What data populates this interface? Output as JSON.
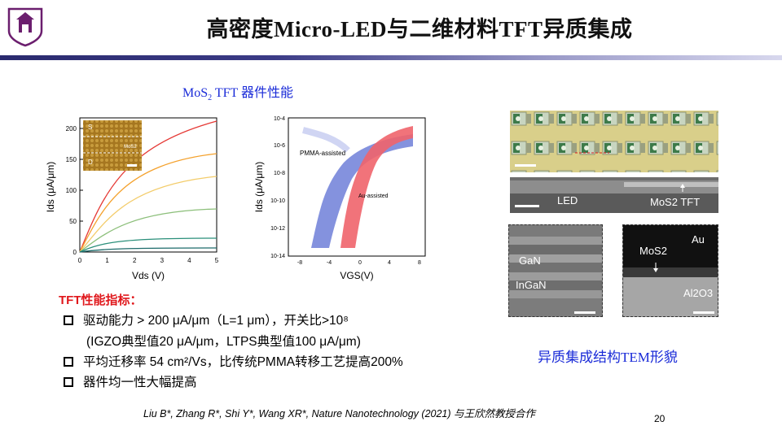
{
  "title": "高密度Micro-LED与二维材料TFT异质集成",
  "subtitle": {
    "prefix": "MoS",
    "sub": "2",
    "suffix": " TFT 器件性能"
  },
  "plot1": {
    "ylabel": "Ids (μA/μm)",
    "xlabel": "Vds (V)",
    "yticks": [
      "0",
      "50",
      "100",
      "150",
      "200"
    ],
    "xticks": [
      "0",
      "1",
      "2",
      "3",
      "4",
      "5"
    ],
    "inset": {
      "s": "S",
      "d": "D",
      "mos2": "MoS2"
    }
  },
  "plot2": {
    "ylabel": "Ids (μA/μm)",
    "xlabel": "VGS(V)",
    "yticks": [
      "10-14",
      "10-12",
      "10-10",
      "10-8",
      "10-6",
      "10-4"
    ],
    "xticks": [
      "-8",
      "-4",
      "0",
      "4",
      "8"
    ],
    "label_pmma": "PMMA-assisted",
    "label_au": "Au-assisted"
  },
  "images": {
    "sem_led": "LED",
    "sem_tft": "MoS2 TFT",
    "tem_gan": "GaN",
    "tem_ingan": "InGaN",
    "tem_au": "Au",
    "tem_mos2": "MoS2",
    "tem_al2o3": "Al2O3"
  },
  "metrics": {
    "heading": "TFT性能指标：",
    "b1": "驱动能力 > 200 μA/μm（L=1 μm），开关比>10⁸",
    "b1b": "(IGZO典型值20 μA/μm，LTPS典型值100 μA/μm)",
    "b2": "平均迁移率 54 cm²/Vs，比传统PMMA转移工艺提高200%",
    "b3": "器件均一性大幅提高"
  },
  "tem_caption": "异质集成结构TEM形貌",
  "citation": "Liu B*, Zhang R*, Shi Y*, Wang XR*, Nature Nanotechnology (2021) 与王欣然教授合作",
  "page_number": "20"
}
